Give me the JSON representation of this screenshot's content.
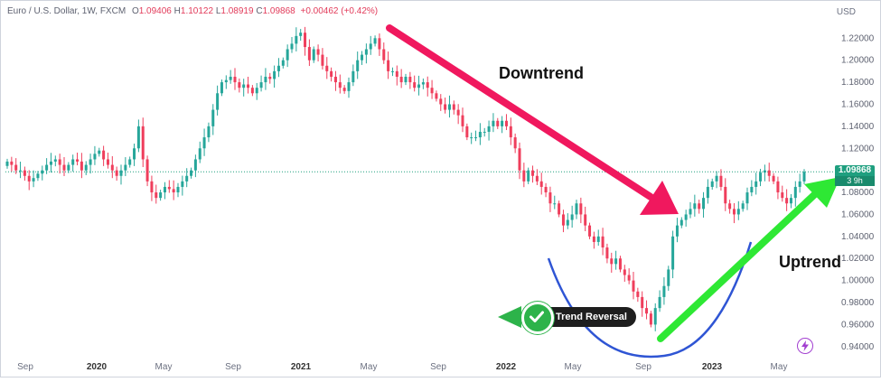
{
  "header": {
    "symbol": "Euro / U.S. Dollar, 1W, FXCM",
    "open_label": "O",
    "open": "1.09406",
    "high_label": "H",
    "high": "1.10122",
    "low_label": "L",
    "low": "1.08919",
    "close_label": "C",
    "close": "1.09868",
    "change": "+0.00462 (+0.42%)"
  },
  "currency": "USD",
  "price_tag": {
    "price": "1.09868",
    "timer": "3 9h"
  },
  "annotations": {
    "downtrend": "Downtrend",
    "uptrend": "Uptrend",
    "reversal": "Trend Reversal"
  },
  "colors": {
    "up": "#26a69a",
    "down": "#ef3e5c",
    "downtrend_arrow": "#f0185e",
    "uptrend_arrow": "#2ee834",
    "curve": "#2f55d4",
    "price_line": "#1f9f7f",
    "reversal_green": "#2db34a"
  },
  "icons": {
    "reversal": "check-icon",
    "bottom_right": "lightning-icon"
  },
  "chart_data": {
    "type": "candlestick",
    "title": "Euro / U.S. Dollar, 1W, FXCM",
    "ylabel": "USD",
    "ylim": [
      0.93,
      1.235
    ],
    "y_ticks": [
      "1.22000",
      "1.20000",
      "1.18000",
      "1.16000",
      "1.14000",
      "1.12000",
      "1.10000",
      "1.08000",
      "1.06000",
      "1.04000",
      "1.02000",
      "1.00000",
      "0.98000",
      "0.96000",
      "0.94000"
    ],
    "x_ticks": [
      "Sep",
      "2020",
      "May",
      "Sep",
      "2021",
      "May",
      "Sep",
      "2022",
      "May",
      "Sep",
      "2023",
      "May"
    ],
    "last_price": 1.09868,
    "series": [
      {
        "name": "EURUSD weekly close",
        "values": [
          1.108,
          1.105,
          1.1,
          1.1,
          1.095,
          1.09,
          1.093,
          1.097,
          1.1,
          1.105,
          1.108,
          1.11,
          1.105,
          1.1,
          1.105,
          1.11,
          1.108,
          1.1,
          1.105,
          1.11,
          1.115,
          1.118,
          1.11,
          1.105,
          1.1,
          1.095,
          1.1,
          1.105,
          1.11,
          1.12,
          1.14,
          1.11,
          1.09,
          1.08,
          1.075,
          1.08,
          1.085,
          1.083,
          1.08,
          1.085,
          1.09,
          1.095,
          1.1,
          1.11,
          1.12,
          1.13,
          1.14,
          1.155,
          1.17,
          1.18,
          1.182,
          1.185,
          1.18,
          1.175,
          1.178,
          1.175,
          1.17,
          1.175,
          1.18,
          1.185,
          1.183,
          1.19,
          1.195,
          1.2,
          1.21,
          1.215,
          1.222,
          1.225,
          1.212,
          1.2,
          1.21,
          1.205,
          1.195,
          1.19,
          1.185,
          1.18,
          1.175,
          1.172,
          1.18,
          1.19,
          1.2,
          1.205,
          1.21,
          1.215,
          1.22,
          1.21,
          1.2,
          1.19,
          1.19,
          1.185,
          1.18,
          1.185,
          1.18,
          1.175,
          1.178,
          1.18,
          1.175,
          1.17,
          1.165,
          1.16,
          1.155,
          1.16,
          1.155,
          1.15,
          1.14,
          1.13,
          1.13,
          1.13,
          1.135,
          1.135,
          1.14,
          1.145,
          1.14,
          1.145,
          1.14,
          1.13,
          1.12,
          1.1,
          1.09,
          1.1,
          1.095,
          1.09,
          1.085,
          1.08,
          1.07,
          1.07,
          1.06,
          1.05,
          1.055,
          1.06,
          1.07,
          1.06,
          1.05,
          1.04,
          1.035,
          1.04,
          1.03,
          1.02,
          1.015,
          1.02,
          1.01,
          1.005,
          1.0,
          0.99,
          0.985,
          0.975,
          0.97,
          0.96,
          0.975,
          0.985,
          0.995,
          1.01,
          1.04,
          1.05,
          1.055,
          1.06,
          1.065,
          1.07,
          1.065,
          1.075,
          1.085,
          1.09,
          1.095,
          1.085,
          1.07,
          1.065,
          1.06,
          1.065,
          1.07,
          1.08,
          1.085,
          1.09,
          1.098,
          1.1,
          1.095,
          1.09,
          1.08,
          1.075,
          1.07,
          1.075,
          1.085,
          1.09,
          1.09868
        ]
      }
    ]
  }
}
